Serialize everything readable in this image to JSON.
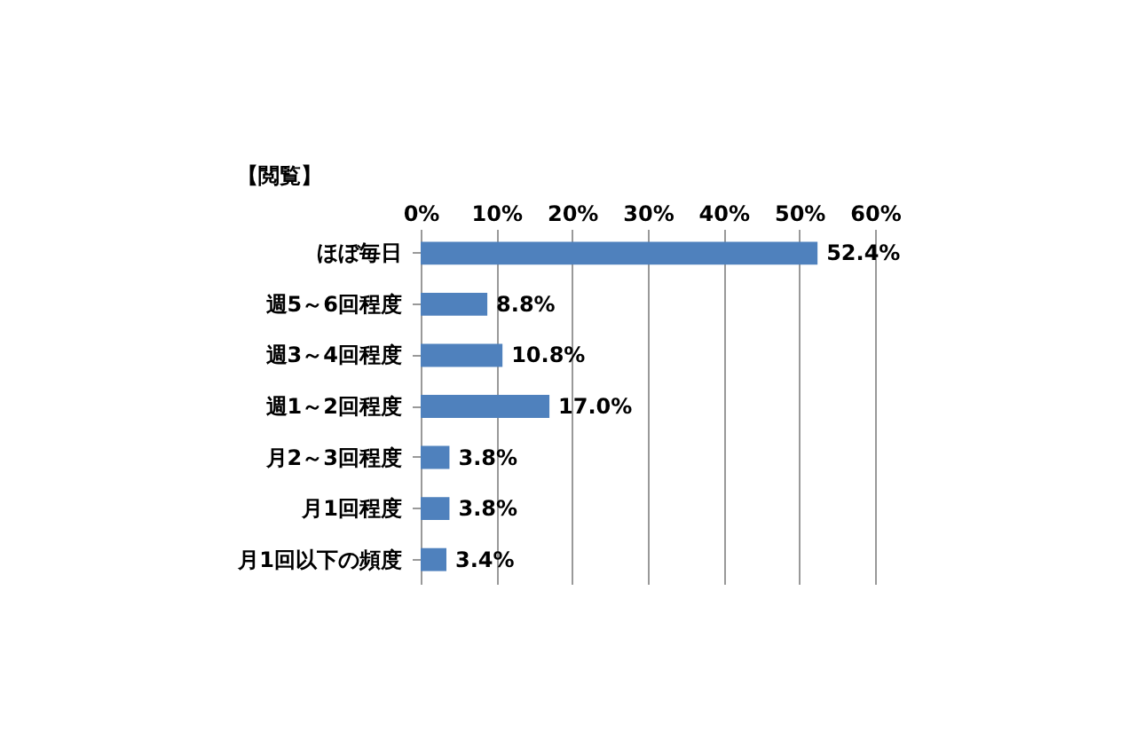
{
  "chart_data": {
    "type": "bar",
    "orientation": "horizontal",
    "title": "【閲覧】",
    "categories": [
      "ほぼ毎日",
      "週5～6回程度",
      "週3～4回程度",
      "週1～2回程度",
      "月2～3回程度",
      "月1回程度",
      "月1回以下の頻度"
    ],
    "values": [
      52.4,
      8.8,
      10.8,
      17.0,
      3.8,
      3.8,
      3.4
    ],
    "value_labels": [
      "52.4%",
      "8.8%",
      "10.8%",
      "17.0%",
      "3.8%",
      "3.8%",
      "3.4%"
    ],
    "color": "#4f81bd",
    "xlim": [
      0,
      60
    ],
    "xticks": [
      {
        "value": 0,
        "label": "0%"
      },
      {
        "value": 10,
        "label": "10%"
      },
      {
        "value": 20,
        "label": "20%"
      },
      {
        "value": 30,
        "label": "30%"
      },
      {
        "value": 40,
        "label": "40%"
      },
      {
        "value": 50,
        "label": "50%"
      },
      {
        "value": 60,
        "label": "60%"
      }
    ],
    "grid": "x"
  }
}
